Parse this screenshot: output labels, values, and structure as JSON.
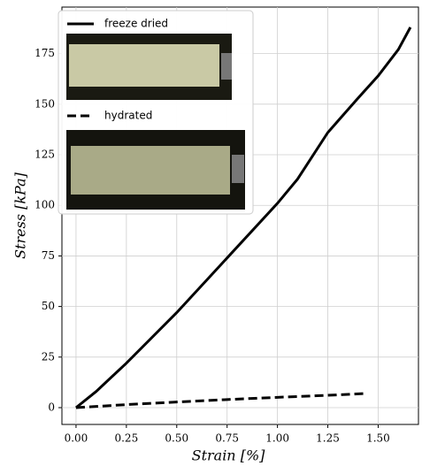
{
  "chart_data": {
    "type": "line",
    "x_label": "Strain [%]",
    "y_label": "Stress [kPa]",
    "series": [
      {
        "name": "freeze dried",
        "color": "#000000",
        "dash": "solid",
        "x": [
          0,
          0.1,
          0.25,
          0.5,
          0.75,
          1.0,
          1.1,
          1.25,
          1.4,
          1.5,
          1.6,
          1.66
        ],
        "values": [
          0,
          8,
          22,
          47,
          74,
          101,
          113,
          136,
          153,
          164,
          177,
          188
        ]
      },
      {
        "name": "hydrated",
        "color": "#000000",
        "dash": "dashed",
        "x": [
          0,
          0.25,
          0.5,
          0.75,
          1.0,
          1.25,
          1.44
        ],
        "values": [
          0,
          1.5,
          2.8,
          4,
          5.1,
          6.1,
          7
        ]
      }
    ],
    "xlim": [
      -0.07,
      1.7
    ],
    "ylim": [
      -8.3,
      198
    ],
    "xticks": [
      {
        "value": 0,
        "label": "0.00"
      },
      {
        "value": 0.25,
        "label": "0.25"
      },
      {
        "value": 0.5,
        "label": "0.50"
      },
      {
        "value": 0.75,
        "label": "0.75"
      },
      {
        "value": 1,
        "label": "1.00"
      },
      {
        "value": 1.25,
        "label": "1.25"
      },
      {
        "value": 1.5,
        "label": "1.50"
      }
    ],
    "yticks": [
      0,
      25,
      50,
      75,
      100,
      125,
      150,
      175
    ],
    "grid": true,
    "legend": "upper left"
  }
}
